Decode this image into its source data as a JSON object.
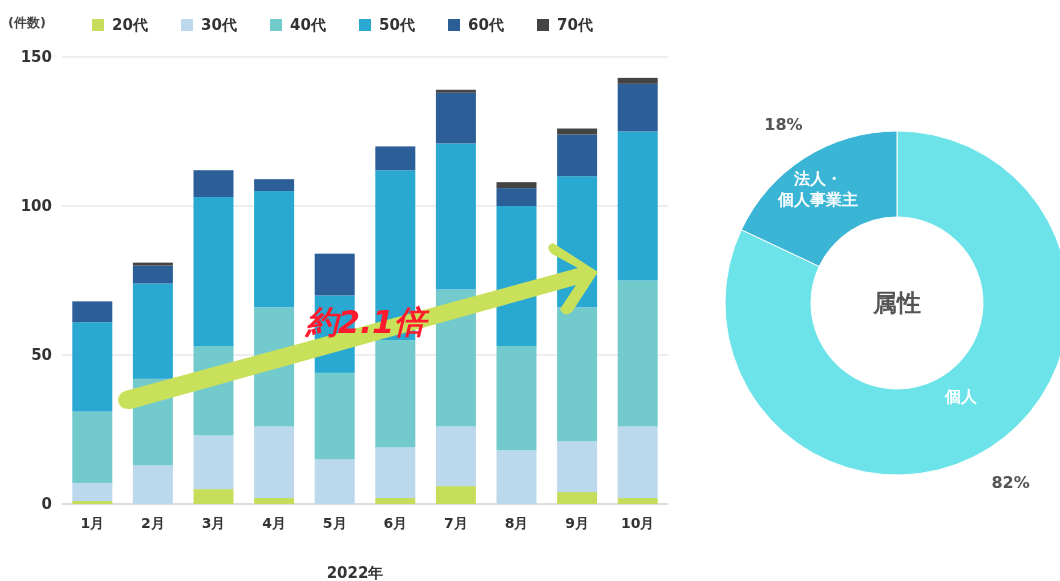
{
  "chart_data": [
    {
      "type": "bar",
      "stacked": true,
      "ylabel": "(件数)",
      "xlabel": "2022年",
      "categories": [
        "1月",
        "2月",
        "3月",
        "4月",
        "5月",
        "6月",
        "7月",
        "8月",
        "9月",
        "10月"
      ],
      "series": [
        {
          "name": "20代",
          "color": "#c5dd5a",
          "values": [
            1,
            0,
            5,
            2,
            0,
            2,
            6,
            0,
            4,
            2
          ]
        },
        {
          "name": "30代",
          "color": "#bcd8ec",
          "values": [
            6,
            13,
            18,
            24,
            15,
            17,
            20,
            18,
            17,
            24
          ]
        },
        {
          "name": "40代",
          "color": "#72cacd",
          "values": [
            24,
            29,
            30,
            40,
            29,
            36,
            46,
            35,
            45,
            49
          ]
        },
        {
          "name": "50代",
          "color": "#29a9d2",
          "values": [
            30,
            32,
            50,
            39,
            26,
            57,
            49,
            47,
            44,
            50
          ]
        },
        {
          "name": "60代",
          "color": "#2c5e98",
          "values": [
            7,
            6,
            9,
            4,
            14,
            8,
            17,
            6,
            14,
            16
          ]
        },
        {
          "name": "70代",
          "color": "#444444",
          "values": [
            0,
            1,
            0,
            0,
            0,
            0,
            1,
            2,
            2,
            2
          ]
        }
      ],
      "ylim": [
        0,
        150
      ],
      "yticks": [
        0,
        50,
        100,
        150
      ],
      "grid": "y",
      "legend": "top left",
      "annotations": [
        "約2.1倍"
      ]
    },
    {
      "type": "donut",
      "title": "属性",
      "categories": [
        "個人",
        "法人・個人事業主"
      ],
      "values": [
        82,
        18
      ],
      "colors": [
        "#6ce3e8",
        "#3bb5d6"
      ],
      "value_labels": [
        "82%",
        "18%"
      ]
    }
  ]
}
